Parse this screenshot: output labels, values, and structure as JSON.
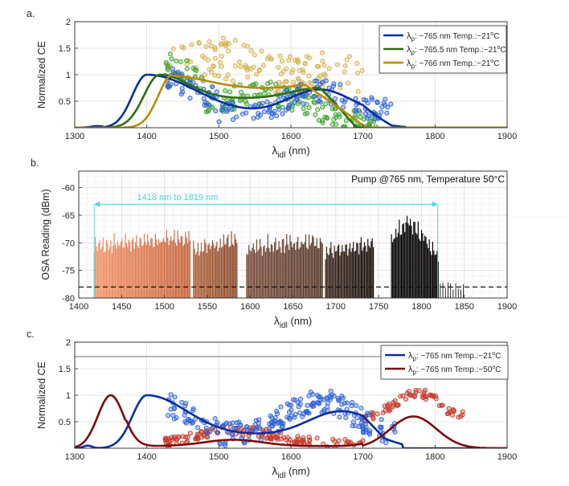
{
  "chart_data": [
    {
      "panel": "a.",
      "type": "scatter",
      "ylabel": "Normalized CE",
      "xlabel": "λidl (nm)",
      "xlabel_main": "λ",
      "xlabel_sub": "idl",
      "xlabel_unit": " (nm)",
      "xlim": [
        1300,
        1900
      ],
      "ylim": [
        0,
        2
      ],
      "xticks": [
        1300,
        1400,
        1500,
        1600,
        1700,
        1800,
        1900
      ],
      "yticks": [
        0.5,
        1,
        1.5,
        2
      ],
      "ytick_labels": [
        "0.5",
        "1",
        "1.5",
        "2"
      ],
      "legend_position": "top-right",
      "series": [
        {
          "name": "λp: ~765 nm    Temp.:~21°C",
          "color": "#0a2f9c",
          "point_color": "#2f62d6",
          "peak_x": 1400,
          "scatter_range": [
            1420,
            1740
          ]
        },
        {
          "name": "λp: ~765.5 nm  Temp.:~21°C",
          "color": "#2e6e14",
          "point_color": "#3ea52a",
          "peak_x": 1418,
          "scatter_range": [
            1420,
            1730
          ]
        },
        {
          "name": "λp: ~766 nm    Temp.:~21°C",
          "color": "#b58d07",
          "point_color": "#d4b04a",
          "peak_x": 1436,
          "scatter_range": [
            1420,
            1720
          ]
        }
      ],
      "legend_items": [
        {
          "lambda": "λ",
          "sub": "p",
          "text": ": ~765 nm    Temp.:~21",
          "deg": "o",
          "unit": "C"
        },
        {
          "lambda": "λ",
          "sub": "p",
          "text": ": ~765.5 nm  Temp.:~21",
          "deg": "o",
          "unit": "C"
        },
        {
          "lambda": "λ",
          "sub": "p",
          "text": ": ~766 nm    Temp.:~21",
          "deg": "o",
          "unit": "C"
        }
      ]
    },
    {
      "panel": "b.",
      "type": "bar",
      "ylabel": "OSA Reading (dBm)",
      "xlabel": "λidl (nm)",
      "xlabel_main": "λ",
      "xlabel_sub": "idl",
      "xlabel_unit": " (nm)",
      "xlim": [
        1400,
        1900
      ],
      "ylim": [
        -80,
        -57
      ],
      "xticks": [
        1400,
        1450,
        1500,
        1550,
        1600,
        1650,
        1700,
        1750,
        1800,
        1850,
        1900
      ],
      "yticks": [
        -80,
        -75,
        -70,
        -65,
        -60
      ],
      "noise_floor": -78,
      "annotation_title": "Pump @765 nm, Temperature 50°C",
      "range_label": "1418 nm to 1819 nm",
      "range": [
        1418,
        1819
      ],
      "bands": [
        {
          "start": 1418,
          "end": 1530,
          "peak": -67.5,
          "color_start": "#f5956a",
          "color_end": "#c4643a"
        },
        {
          "start": 1534,
          "end": 1585,
          "peak": -68,
          "color_start": "#b0643e",
          "color_end": "#8a4a2c"
        },
        {
          "start": 1596,
          "end": 1685,
          "peak": -68,
          "color_start": "#7a4e3c",
          "color_end": "#56392b"
        },
        {
          "start": 1688,
          "end": 1745,
          "peak": -68.5,
          "color_start": "#3e2a20",
          "color_end": "#140c08"
        },
        {
          "start": 1765,
          "end": 1820,
          "peak": -64.5,
          "color_start": "#0a0705",
          "color_end": "#000000"
        }
      ]
    },
    {
      "panel": "c.",
      "type": "scatter",
      "ylabel": "Normalized CE",
      "xlabel": "λidl (nm)",
      "xlabel_main": "λ",
      "xlabel_sub": "idl",
      "xlabel_unit": " (nm)",
      "xlim": [
        1300,
        1900
      ],
      "ylim": [
        0,
        2
      ],
      "xticks": [
        1300,
        1400,
        1500,
        1600,
        1700,
        1800,
        1900
      ],
      "yticks": [
        0.5,
        1,
        1.5,
        2
      ],
      "ytick_labels": [
        "0.5",
        "1",
        "1.5",
        "2"
      ],
      "reference_line": 1.73,
      "legend_position": "top-right",
      "series": [
        {
          "name": "λp: ~765 nm Temp.:~21°C",
          "color": "#0a2f9c",
          "point_color": "#2f62d6"
        },
        {
          "name": "λp: ~765 nm Temp.:~50°C",
          "color": "#7a0d0d",
          "point_color": "#c43c2c"
        }
      ],
      "legend_items": [
        {
          "lambda": "λ",
          "sub": "p",
          "text": ": ~765 nm Temp.:~21",
          "deg": "o",
          "unit": "C"
        },
        {
          "lambda": "λ",
          "sub": "p",
          "text": ": ~765 nm Temp.:~50",
          "deg": "o",
          "unit": "C"
        }
      ]
    }
  ]
}
